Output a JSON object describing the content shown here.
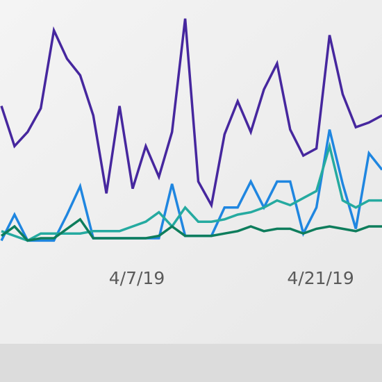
{
  "chart_data": {
    "type": "line",
    "categories": [
      null,
      null,
      null,
      null,
      null,
      null,
      null,
      null,
      null,
      null,
      "4/7/19",
      null,
      null,
      null,
      null,
      null,
      null,
      null,
      null,
      null,
      null,
      null,
      null,
      null,
      "4/21/19",
      null,
      null,
      null,
      null,
      null
    ],
    "series": [
      {
        "color": "#46279e",
        "values": [
          61,
          44,
          50,
          60,
          93,
          81,
          74,
          57,
          24,
          61,
          26,
          44,
          31,
          50,
          98,
          29,
          19,
          49,
          63,
          50,
          68,
          79,
          51,
          40,
          43,
          91,
          66,
          52,
          54,
          57
        ]
      },
      {
        "color": "#1f86e0",
        "values": [
          4,
          15,
          4,
          4,
          4,
          15,
          27,
          5,
          5,
          5,
          5,
          5,
          5,
          28,
          6,
          6,
          6,
          18,
          18,
          29,
          18,
          29,
          29,
          7,
          18,
          51,
          28,
          9,
          41,
          34
        ]
      },
      {
        "color": "#25aaa0",
        "values": [
          8,
          6,
          4,
          7,
          7,
          7,
          7,
          8,
          8,
          8,
          10,
          12,
          16,
          10,
          18,
          12,
          12,
          13,
          15,
          16,
          18,
          21,
          19,
          22,
          25,
          44,
          21,
          18,
          21,
          21
        ]
      },
      {
        "color": "#0e7d5c",
        "values": [
          6,
          10,
          4,
          5,
          5,
          9,
          13,
          5,
          5,
          5,
          5,
          5,
          6,
          10,
          6,
          6,
          6,
          7,
          8,
          10,
          8,
          9,
          9,
          7,
          9,
          10,
          9,
          8,
          10,
          10
        ]
      }
    ],
    "ylim": [
      0,
      100
    ]
  }
}
